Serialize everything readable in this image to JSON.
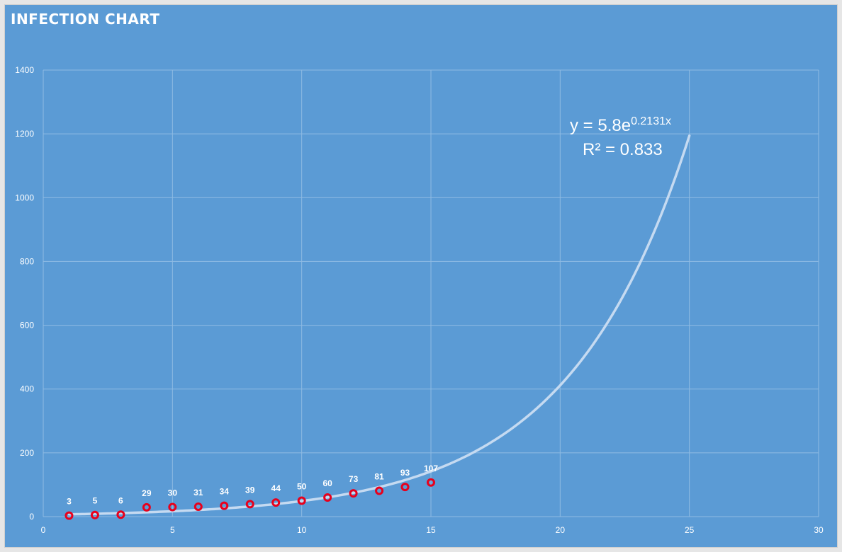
{
  "chart_data": {
    "type": "scatter",
    "title": "INFECTION CHART",
    "x": [
      1,
      2,
      3,
      4,
      5,
      6,
      7,
      8,
      9,
      10,
      11,
      12,
      13,
      14,
      15
    ],
    "y": [
      3,
      5,
      6,
      29,
      30,
      31,
      34,
      39,
      44,
      50,
      60,
      73,
      81,
      93,
      107
    ],
    "data_labels": [
      "3",
      "5",
      "6",
      "29",
      "30",
      "31",
      "34",
      "39",
      "44",
      "50",
      "60",
      "73",
      "81",
      "93",
      "107"
    ],
    "xlim": [
      0,
      30
    ],
    "ylim": [
      0,
      1400
    ],
    "x_ticks": [
      0,
      5,
      10,
      15,
      20,
      25,
      30
    ],
    "y_ticks": [
      0,
      200,
      400,
      600,
      800,
      1000,
      1200,
      1400
    ],
    "grid": true,
    "trendline": {
      "type": "exponential",
      "a": 5.8,
      "b": 0.2131,
      "x_range": [
        1,
        25
      ],
      "equation_base": "y = 5.8e",
      "equation_exponent": "0.2131x",
      "r_squared_label": "R² = 0.833"
    },
    "colors": {
      "background": "#5b9bd5",
      "gridline": "#8fbbe3",
      "marker": "#e8001c",
      "trendline": "#c5daf1",
      "text": "#ffffff"
    }
  }
}
